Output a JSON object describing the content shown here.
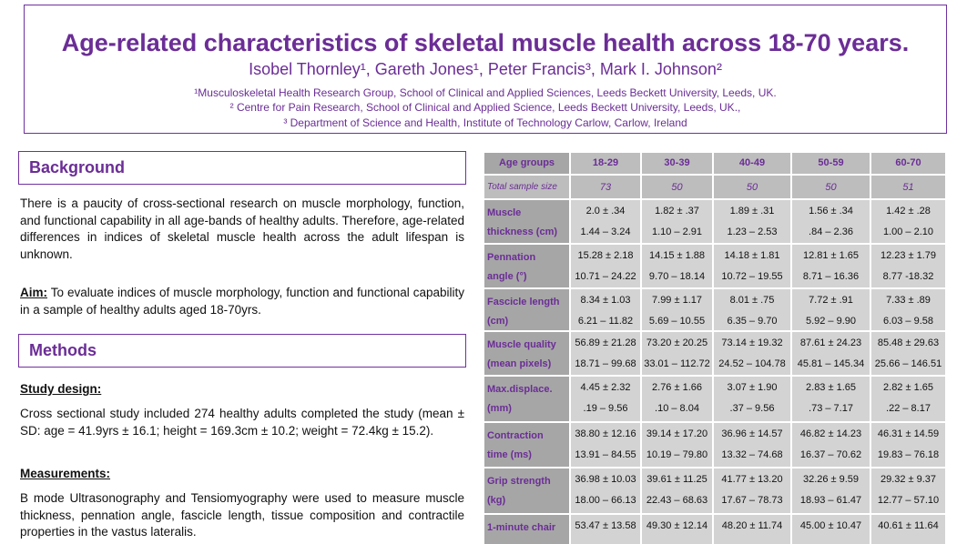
{
  "header": {
    "title": "Age-related characteristics of skeletal muscle health across 18-70 years.",
    "authors": "Isobel Thornley¹, Gareth Jones¹, Peter Francis³, Mark I. Johnson²",
    "affiliations": [
      "¹Musculoskeletal Health Research Group, School of Clinical and Applied Sciences, Leeds Beckett University, Leeds, UK.",
      "² Centre for Pain Research, School of Clinical and Applied Science, Leeds Beckett University, Leeds, UK.,",
      "³ Department of Science and Health, Institute of Technology Carlow, Carlow, Ireland"
    ]
  },
  "background": {
    "heading": "Background",
    "text": "There is a paucity of cross-sectional research on muscle morphology, function, and functional capability in all age-bands of healthy adults. Therefore, age-related differences in indices of skeletal muscle health across the adult lifespan is unknown.",
    "aim_label": "Aim:",
    "aim_text": "To evaluate indices of muscle morphology, function and functional capability in a sample of healthy adults aged 18-70yrs."
  },
  "methods": {
    "heading": "Methods",
    "study_design_label": "Study design:",
    "study_design_text": "Cross sectional study included 274 healthy adults completed the study (mean ± SD: age = 41.9yrs ± 16.1; height = 169.3cm ± 10.2; weight = 72.4kg ± 15.2).",
    "measurements_label": "Measurements:",
    "measurements_text": "B mode Ultrasonography and Tensiomyography were used to measure muscle thickness, pennation angle, fascicle length, tissue composition and contractile properties in the vastus lateralis."
  },
  "table": {
    "header": [
      "Age groups",
      "18-29",
      "30-39",
      "40-49",
      "50-59",
      "60-70"
    ],
    "sample_row": {
      "label": "Total sample size",
      "cells": [
        "73",
        "50",
        "50",
        "50",
        "51"
      ]
    },
    "rows": [
      {
        "label": [
          "Muscle",
          "thickness (cm)"
        ],
        "cells": [
          [
            "2.0 ± .34",
            "1.44 – 3.24"
          ],
          [
            "1.82 ± .37",
            "1.10 – 2.91"
          ],
          [
            "1.89 ± .31",
            "1.23 – 2.53"
          ],
          [
            "1.56 ± .34",
            ".84 – 2.36"
          ],
          [
            "1.42 ± .28",
            "1.00 – 2.10"
          ]
        ]
      },
      {
        "label": [
          "Pennation",
          "angle (°)"
        ],
        "cells": [
          [
            "15.28 ± 2.18",
            "10.71 – 24.22"
          ],
          [
            "14.15 ± 1.88",
            "9.70 – 18.14"
          ],
          [
            "14.18 ± 1.81",
            "10.72 – 19.55"
          ],
          [
            "12.81 ± 1.65",
            "8.71 – 16.36"
          ],
          [
            "12.23 ± 1.79",
            "8.77 -18.32"
          ]
        ]
      },
      {
        "label": [
          "Fascicle length",
          "(cm)"
        ],
        "cells": [
          [
            "8.34 ± 1.03",
            "6.21 – 11.82"
          ],
          [
            "7.99 ± 1.17",
            "5.69 – 10.55"
          ],
          [
            "8.01 ± .75",
            "6.35 – 9.70"
          ],
          [
            "7.72 ± .91",
            "5.92 – 9.90"
          ],
          [
            "7.33 ± .89",
            "6.03 – 9.58"
          ]
        ]
      },
      {
        "label": [
          "Muscle quality",
          "(mean pixels)"
        ],
        "cells": [
          [
            "56.89 ± 21.28",
            "18.71 – 99.68"
          ],
          [
            "73.20 ± 20.25",
            "33.01 – 112.72"
          ],
          [
            "73.14 ± 19.32",
            "24.52 – 104.78"
          ],
          [
            "87.61 ± 24.23",
            "45.81 – 145.34"
          ],
          [
            "85.48 ± 29.63",
            "25.66 – 146.51"
          ]
        ]
      },
      {
        "label": [
          "Max.displace.",
          "(mm)"
        ],
        "cells": [
          [
            "4.45 ± 2.32",
            ".19 – 9.56"
          ],
          [
            "2.76 ± 1.66",
            ".10 – 8.04"
          ],
          [
            "3.07 ± 1.90",
            ".37 – 9.56"
          ],
          [
            "2.83 ± 1.65",
            ".73 – 7.17"
          ],
          [
            "2.82 ± 1.65",
            ".22 – 8.17"
          ]
        ]
      },
      {
        "label": [
          "Contraction",
          "time (ms)"
        ],
        "cells": [
          [
            "38.80 ± 12.16",
            "13.91 – 84.55"
          ],
          [
            "39.14 ± 17.20",
            "10.19 – 79.80"
          ],
          [
            "36.96 ± 14.57",
            "13.32 – 74.68"
          ],
          [
            "46.82 ± 14.23",
            "16.37 – 70.62"
          ],
          [
            "46.31 ± 14.59",
            "19.83 – 76.18"
          ]
        ]
      },
      {
        "label": [
          "Grip strength",
          "(kg)"
        ],
        "cells": [
          [
            "36.98 ± 10.03",
            "18.00 – 66.13"
          ],
          [
            "39.61 ± 11.25",
            "22.43 – 68.63"
          ],
          [
            "41.77 ± 13.20",
            "17.67 – 78.73"
          ],
          [
            "32.26 ± 9.59",
            "18.93 – 61.47"
          ],
          [
            "29.32 ± 9.37",
            "12.77 – 57.10"
          ]
        ]
      },
      {
        "label": [
          "1-minute chair"
        ],
        "cells": [
          [
            "53.47 ± 13.58"
          ],
          [
            "49.30 ± 12.14"
          ],
          [
            "48.20 ± 11.74"
          ],
          [
            "45.00 ± 10.47"
          ],
          [
            "40.61 ± 11.64"
          ]
        ]
      }
    ]
  }
}
